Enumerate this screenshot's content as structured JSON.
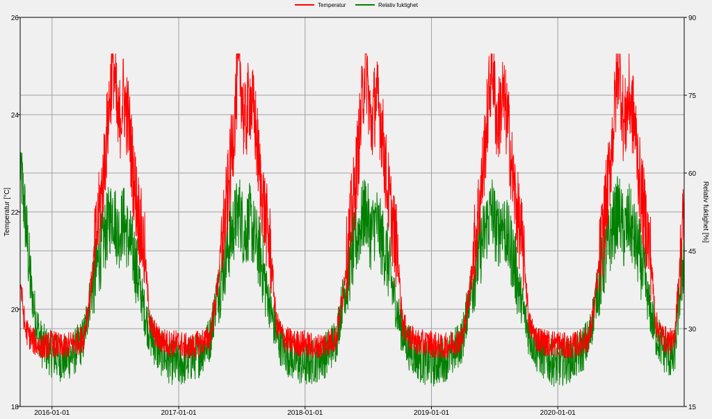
{
  "chart_data": {
    "type": "line",
    "title": "",
    "legend": {
      "placement": "top-center",
      "entries": [
        {
          "name": "Temperatur",
          "color": "#ff0000"
        },
        {
          "name": "Relativ fuktighet",
          "color": "#008000"
        }
      ]
    },
    "x_axis": {
      "type": "date",
      "range": [
        "2015-10-01",
        "2020-12-31"
      ],
      "ticks": [
        "2016-01-01",
        "2017-01-01",
        "2018-01-01",
        "2019-01-01",
        "2020-01-01"
      ],
      "grid": true
    },
    "y_axis_left": {
      "label": "Temperatur [°C]",
      "range": [
        18,
        26
      ],
      "ticks": [
        18,
        20,
        22,
        24,
        26
      ],
      "grid": true
    },
    "y_axis_right": {
      "label": "Relativ fuktighet [%]",
      "range": [
        15,
        90
      ],
      "ticks": [
        15,
        30,
        45,
        60,
        75,
        90
      ]
    },
    "series": [
      {
        "name": "Temperatur",
        "axis": "left",
        "color": "#ff0000",
        "x": [
          "2015-10-01",
          "2015-10-15",
          "2015-11-01",
          "2015-11-15",
          "2015-12-01",
          "2016-01-01",
          "2016-02-01",
          "2016-03-01",
          "2016-04-01",
          "2016-04-20",
          "2016-05-10",
          "2016-05-25",
          "2016-06-10",
          "2016-06-25",
          "2016-07-10",
          "2016-07-25",
          "2016-08-10",
          "2016-08-25",
          "2016-09-10",
          "2016-09-25",
          "2016-10-10",
          "2016-11-01",
          "2016-12-01",
          "2017-01-01",
          "2017-02-01",
          "2017-03-01",
          "2017-04-01",
          "2017-04-20",
          "2017-05-10",
          "2017-05-25",
          "2017-06-10",
          "2017-06-25",
          "2017-07-10",
          "2017-07-25",
          "2017-08-10",
          "2017-08-25",
          "2017-09-10",
          "2017-09-25",
          "2017-10-10",
          "2017-11-01",
          "2017-12-01",
          "2018-01-01",
          "2018-02-01",
          "2018-03-01",
          "2018-04-01",
          "2018-04-20",
          "2018-05-10",
          "2018-05-25",
          "2018-06-10",
          "2018-06-25",
          "2018-07-10",
          "2018-07-25",
          "2018-08-10",
          "2018-08-25",
          "2018-09-10",
          "2018-09-25",
          "2018-10-10",
          "2018-11-01",
          "2018-12-01",
          "2019-01-01",
          "2019-02-01",
          "2019-03-01",
          "2019-04-01",
          "2019-04-20",
          "2019-05-10",
          "2019-05-25",
          "2019-06-10",
          "2019-06-25",
          "2019-07-10",
          "2019-07-25",
          "2019-08-10",
          "2019-08-25",
          "2019-09-10",
          "2019-09-25",
          "2019-10-10",
          "2019-11-01",
          "2019-12-01",
          "2020-01-01",
          "2020-02-01",
          "2020-03-01",
          "2020-04-01",
          "2020-04-20",
          "2020-05-10",
          "2020-05-25",
          "2020-06-10",
          "2020-06-25",
          "2020-07-10",
          "2020-07-25",
          "2020-08-10",
          "2020-08-25",
          "2020-09-10",
          "2020-09-25",
          "2020-10-10",
          "2020-11-01",
          "2020-12-01",
          "2020-12-31"
        ],
        "values": [
          20.6,
          19.6,
          19.4,
          19.3,
          19.2,
          19.3,
          19.2,
          19.3,
          19.4,
          20.3,
          21.6,
          22.5,
          23.8,
          25.2,
          23.7,
          24.4,
          23.8,
          22.6,
          21.8,
          21.1,
          19.7,
          19.4,
          19.3,
          19.3,
          19.2,
          19.3,
          19.4,
          20.3,
          21.6,
          22.5,
          23.8,
          25.2,
          23.7,
          24.4,
          23.8,
          22.6,
          21.8,
          21.1,
          19.7,
          19.4,
          19.3,
          19.3,
          19.2,
          19.3,
          19.4,
          20.3,
          21.6,
          22.5,
          23.8,
          25.2,
          23.7,
          24.4,
          23.8,
          22.6,
          21.8,
          21.1,
          19.7,
          19.4,
          19.3,
          19.3,
          19.2,
          19.3,
          19.4,
          20.3,
          21.6,
          22.5,
          23.8,
          25.2,
          23.7,
          24.4,
          23.8,
          22.6,
          21.8,
          21.1,
          19.7,
          19.4,
          19.3,
          19.3,
          19.2,
          19.3,
          19.4,
          20.3,
          21.6,
          22.5,
          23.8,
          25.2,
          23.7,
          24.4,
          23.8,
          22.6,
          21.8,
          21.1,
          19.7,
          19.4,
          19.3,
          22.0
        ]
      },
      {
        "name": "Relativ fuktighet",
        "axis": "right",
        "color": "#008000",
        "x": [
          "2015-10-01",
          "2015-10-15",
          "2015-11-01",
          "2015-11-15",
          "2015-12-01",
          "2016-01-01",
          "2016-02-01",
          "2016-03-01",
          "2016-04-01",
          "2016-04-20",
          "2016-05-10",
          "2016-05-25",
          "2016-06-10",
          "2016-06-25",
          "2016-07-10",
          "2016-07-25",
          "2016-08-10",
          "2016-08-25",
          "2016-09-10",
          "2016-09-25",
          "2016-10-10",
          "2016-11-01",
          "2016-12-01",
          "2017-01-01",
          "2017-02-01",
          "2017-03-01",
          "2017-04-01",
          "2017-04-20",
          "2017-05-10",
          "2017-05-25",
          "2017-06-10",
          "2017-06-25",
          "2017-07-10",
          "2017-07-25",
          "2017-08-10",
          "2017-08-25",
          "2017-09-10",
          "2017-09-25",
          "2017-10-10",
          "2017-11-01",
          "2017-12-01",
          "2018-01-01",
          "2018-02-01",
          "2018-03-01",
          "2018-04-01",
          "2018-04-20",
          "2018-05-10",
          "2018-05-25",
          "2018-06-10",
          "2018-06-25",
          "2018-07-10",
          "2018-07-25",
          "2018-08-10",
          "2018-08-25",
          "2018-09-10",
          "2018-09-25",
          "2018-10-10",
          "2018-11-01",
          "2018-12-01",
          "2019-01-01",
          "2019-02-01",
          "2019-03-01",
          "2019-04-01",
          "2019-04-20",
          "2019-05-10",
          "2019-05-25",
          "2019-06-10",
          "2019-06-25",
          "2019-07-10",
          "2019-07-25",
          "2019-08-10",
          "2019-08-25",
          "2019-09-10",
          "2019-09-25",
          "2019-10-10",
          "2019-11-01",
          "2019-12-01",
          "2020-01-01",
          "2020-02-01",
          "2020-03-01",
          "2020-04-01",
          "2020-04-20",
          "2020-05-10",
          "2020-05-25",
          "2020-06-10",
          "2020-06-25",
          "2020-07-10",
          "2020-07-25",
          "2020-08-10",
          "2020-08-25",
          "2020-09-10",
          "2020-09-25",
          "2020-10-10",
          "2020-11-01",
          "2020-12-01",
          "2020-12-31"
        ],
        "values": [
          62,
          52,
          38,
          32,
          27,
          25,
          24,
          25,
          28,
          36,
          42,
          46,
          50,
          53,
          48,
          51,
          47,
          44,
          38,
          33,
          29,
          26,
          24,
          23,
          24,
          25,
          28,
          36,
          42,
          46,
          50,
          53,
          48,
          51,
          47,
          44,
          38,
          33,
          29,
          26,
          24,
          23,
          24,
          25,
          28,
          36,
          42,
          46,
          50,
          53,
          48,
          51,
          47,
          44,
          38,
          33,
          29,
          26,
          24,
          23,
          24,
          25,
          28,
          36,
          42,
          46,
          50,
          53,
          48,
          51,
          47,
          44,
          38,
          33,
          29,
          26,
          24,
          23,
          24,
          25,
          28,
          36,
          42,
          46,
          50,
          53,
          48,
          51,
          47,
          44,
          38,
          33,
          29,
          26,
          24,
          45
        ]
      }
    ]
  }
}
